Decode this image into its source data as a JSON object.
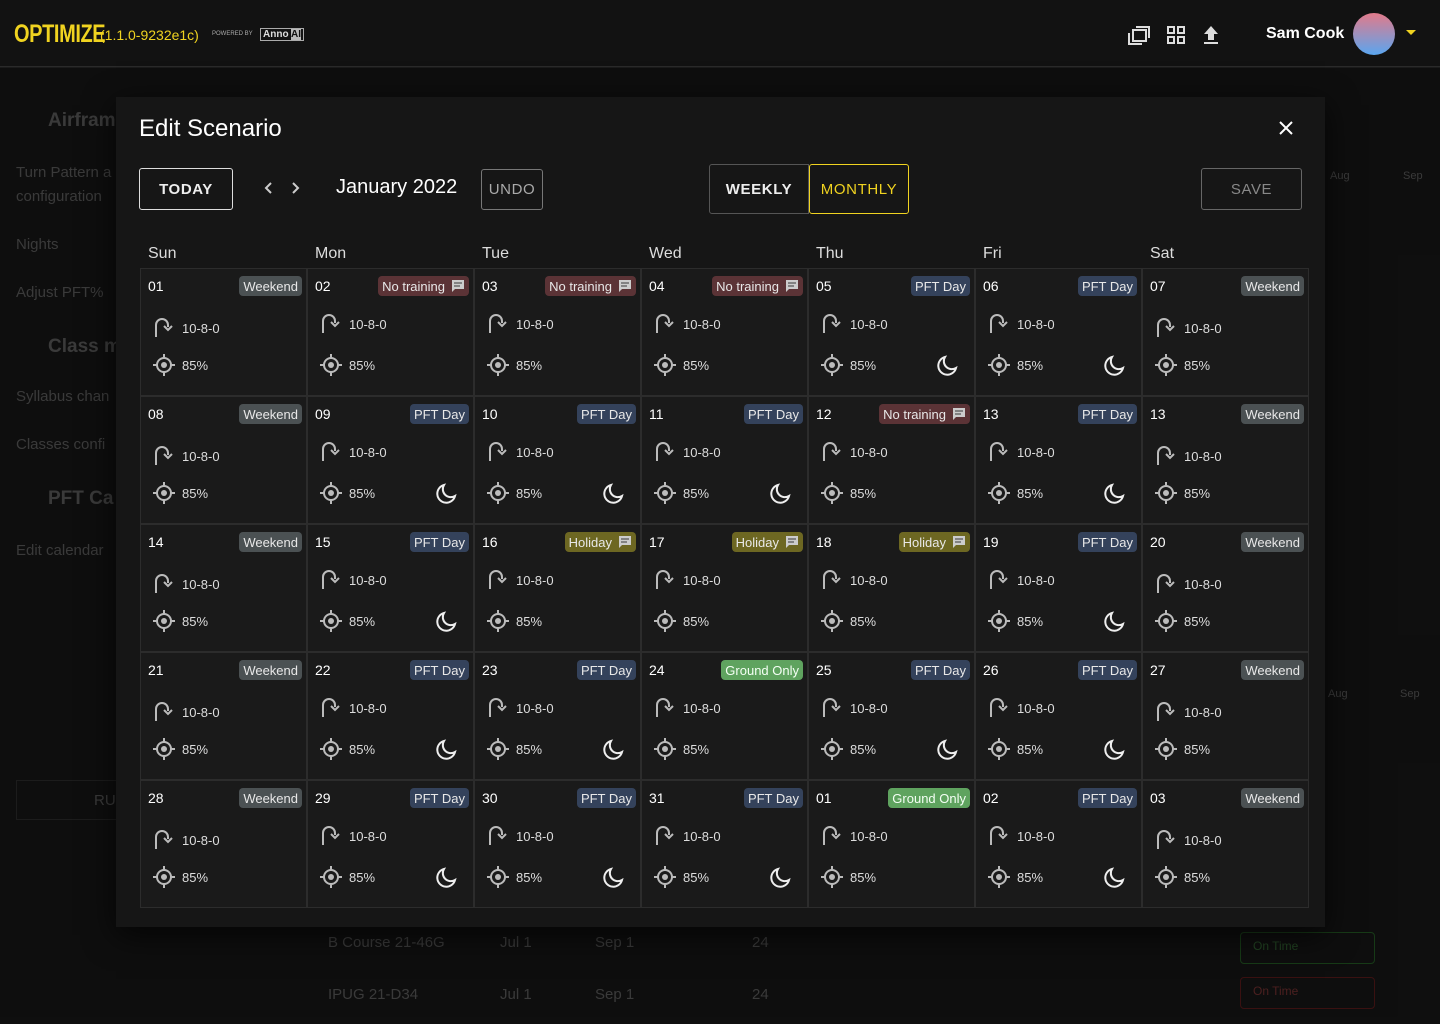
{
  "header": {
    "app_name": "OPTIMIZE",
    "version": "(1.1.0-9232e1c)",
    "powered_by": "POWERED BY",
    "brand": "Anno",
    "brand_suffix": "AI",
    "user_name": "Sam Cook"
  },
  "background": {
    "sidebar": [
      "Airframe",
      "Turn Pattern a",
      "configuration",
      "Nights",
      "Adjust PFT%",
      "Class m",
      "Syllabus chan",
      "Classes confi",
      "PFT Ca",
      "Edit calendar",
      "RU"
    ],
    "rows": [
      [
        "B Course 21-46G",
        "Jul 1",
        "Sep 1",
        "24"
      ],
      [
        "IPUG 21-D34",
        "Jul 1",
        "Sep 1",
        "24"
      ]
    ],
    "status": [
      "On Time",
      "On Time"
    ],
    "months": [
      "Aug",
      "Sep",
      "Aug",
      "Sep"
    ]
  },
  "modal": {
    "title": "Edit Scenario",
    "today": "TODAY",
    "month": "January 2022",
    "undo": "UNDO",
    "weekly": "WEEKLY",
    "monthly": "MONTHLY",
    "save": "SAVE",
    "weekdays": [
      "Sun",
      "Mon",
      "Tue",
      "Wed",
      "Thu",
      "Fri",
      "Sat"
    ],
    "cells": [
      {
        "day": "01",
        "tag": "Weekend",
        "pattern": "10-8-0",
        "pft": "85%",
        "night": false,
        "comment": false
      },
      {
        "day": "02",
        "tag": "No training",
        "pattern": "10-8-0",
        "pft": "85%",
        "night": false,
        "comment": true
      },
      {
        "day": "03",
        "tag": "No training",
        "pattern": "10-8-0",
        "pft": "85%",
        "night": false,
        "comment": true
      },
      {
        "day": "04",
        "tag": "No training",
        "pattern": "10-8-0",
        "pft": "85%",
        "night": false,
        "comment": true
      },
      {
        "day": "05",
        "tag": "PFT Day",
        "pattern": "10-8-0",
        "pft": "85%",
        "night": true,
        "comment": false
      },
      {
        "day": "06",
        "tag": "PFT Day",
        "pattern": "10-8-0",
        "pft": "85%",
        "night": true,
        "comment": false
      },
      {
        "day": "07",
        "tag": "Weekend",
        "pattern": "10-8-0",
        "pft": "85%",
        "night": false,
        "comment": false
      },
      {
        "day": "08",
        "tag": "Weekend",
        "pattern": "10-8-0",
        "pft": "85%",
        "night": false,
        "comment": false
      },
      {
        "day": "09",
        "tag": "PFT Day",
        "pattern": "10-8-0",
        "pft": "85%",
        "night": true,
        "comment": false
      },
      {
        "day": "10",
        "tag": "PFT Day",
        "pattern": "10-8-0",
        "pft": "85%",
        "night": true,
        "comment": false
      },
      {
        "day": "11",
        "tag": "PFT Day",
        "pattern": "10-8-0",
        "pft": "85%",
        "night": true,
        "comment": false
      },
      {
        "day": "12",
        "tag": "No training",
        "pattern": "10-8-0",
        "pft": "85%",
        "night": false,
        "comment": true
      },
      {
        "day": "13",
        "tag": "PFT Day",
        "pattern": "10-8-0",
        "pft": "85%",
        "night": true,
        "comment": false
      },
      {
        "day": "13",
        "tag": "Weekend",
        "pattern": "10-8-0",
        "pft": "85%",
        "night": false,
        "comment": false
      },
      {
        "day": "14",
        "tag": "Weekend",
        "pattern": "10-8-0",
        "pft": "85%",
        "night": false,
        "comment": false
      },
      {
        "day": "15",
        "tag": "PFT Day",
        "pattern": "10-8-0",
        "pft": "85%",
        "night": true,
        "comment": false
      },
      {
        "day": "16",
        "tag": "Holiday",
        "pattern": "10-8-0",
        "pft": "85%",
        "night": false,
        "comment": true
      },
      {
        "day": "17",
        "tag": "Holiday",
        "pattern": "10-8-0",
        "pft": "85%",
        "night": false,
        "comment": true
      },
      {
        "day": "18",
        "tag": "Holiday",
        "pattern": "10-8-0",
        "pft": "85%",
        "night": false,
        "comment": true
      },
      {
        "day": "19",
        "tag": "PFT Day",
        "pattern": "10-8-0",
        "pft": "85%",
        "night": true,
        "comment": false
      },
      {
        "day": "20",
        "tag": "Weekend",
        "pattern": "10-8-0",
        "pft": "85%",
        "night": false,
        "comment": false
      },
      {
        "day": "21",
        "tag": "Weekend",
        "pattern": "10-8-0",
        "pft": "85%",
        "night": false,
        "comment": false
      },
      {
        "day": "22",
        "tag": "PFT Day",
        "pattern": "10-8-0",
        "pft": "85%",
        "night": true,
        "comment": false
      },
      {
        "day": "23",
        "tag": "PFT Day",
        "pattern": "10-8-0",
        "pft": "85%",
        "night": true,
        "comment": false
      },
      {
        "day": "24",
        "tag": "Ground Only",
        "pattern": "10-8-0",
        "pft": "85%",
        "night": false,
        "comment": false
      },
      {
        "day": "25",
        "tag": "PFT Day",
        "pattern": "10-8-0",
        "pft": "85%",
        "night": true,
        "comment": false
      },
      {
        "day": "26",
        "tag": "PFT Day",
        "pattern": "10-8-0",
        "pft": "85%",
        "night": true,
        "comment": false
      },
      {
        "day": "27",
        "tag": "Weekend",
        "pattern": "10-8-0",
        "pft": "85%",
        "night": false,
        "comment": false
      },
      {
        "day": "28",
        "tag": "Weekend",
        "pattern": "10-8-0",
        "pft": "85%",
        "night": false,
        "comment": false
      },
      {
        "day": "29",
        "tag": "PFT Day",
        "pattern": "10-8-0",
        "pft": "85%",
        "night": true,
        "comment": false
      },
      {
        "day": "30",
        "tag": "PFT Day",
        "pattern": "10-8-0",
        "pft": "85%",
        "night": true,
        "comment": false
      },
      {
        "day": "31",
        "tag": "PFT Day",
        "pattern": "10-8-0",
        "pft": "85%",
        "night": true,
        "comment": false
      },
      {
        "day": "01",
        "tag": "Ground Only",
        "pattern": "10-8-0",
        "pft": "85%",
        "night": false,
        "comment": false
      },
      {
        "day": "02",
        "tag": "PFT Day",
        "pattern": "10-8-0",
        "pft": "85%",
        "night": true,
        "comment": false
      },
      {
        "day": "03",
        "tag": "Weekend",
        "pattern": "10-8-0",
        "pft": "85%",
        "night": false,
        "comment": false
      }
    ]
  }
}
